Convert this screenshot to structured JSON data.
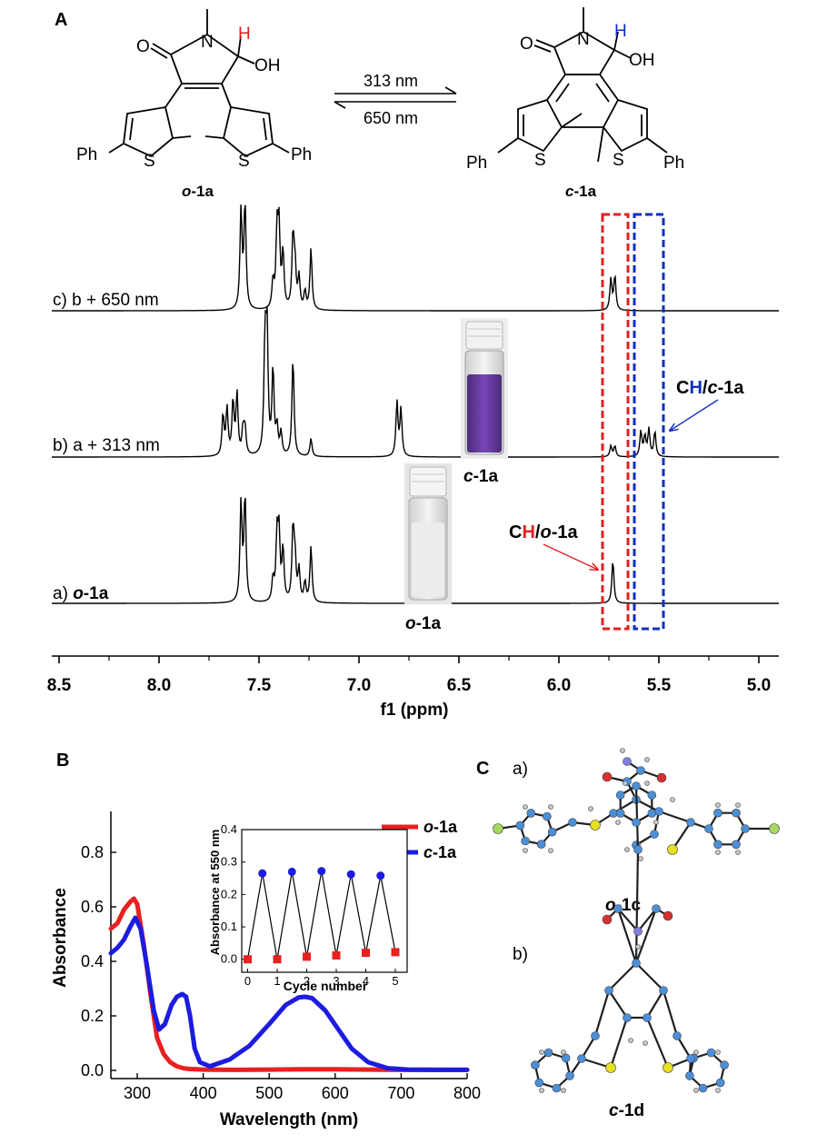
{
  "panels": {
    "a": "A",
    "b": "B",
    "c": "C"
  },
  "scheme": {
    "forward_wavelength": "313 nm",
    "reverse_wavelength": "650 nm",
    "left_label_prefix": "o",
    "left_label_suffix": "-1a",
    "right_label_prefix": "c",
    "right_label_suffix": "-1a",
    "atom_labels": {
      "o": "O",
      "n": "N",
      "h": "H",
      "oh": "OH",
      "s": "S",
      "ph": "Ph"
    },
    "colors": {
      "open_h": "#e02020",
      "closed_h": "#1030c0"
    }
  },
  "nmr": {
    "spectra": [
      {
        "id": "c",
        "prefix": "c)",
        "label": "b + 650 nm"
      },
      {
        "id": "b",
        "prefix": "b)",
        "label": "a + 313 nm"
      },
      {
        "id": "a",
        "prefix": "a)",
        "label_italic": "o",
        "label_rest": "-1a"
      }
    ],
    "axis": {
      "xlabel": "f1 (ppm)",
      "ticks": [
        "8.5",
        "8.0",
        "7.5",
        "7.0",
        "6.5",
        "6.0",
        "5.5",
        "5.0"
      ]
    },
    "annotations": {
      "closed": {
        "c": "C",
        "h": "H",
        "rest_italic": "c",
        "rest": "-1a"
      },
      "open": {
        "c": "C",
        "h": "H",
        "rest_italic": "o",
        "rest": "-1a"
      }
    },
    "vial_labels": {
      "purple_prefix": "c",
      "purple_suffix": "-1a",
      "clear_prefix": "o",
      "clear_suffix": "-1a"
    },
    "colors": {
      "red_box": "#e02020",
      "blue_box": "#1030c0"
    }
  },
  "chart_data": {
    "type": "line",
    "title": "",
    "xlabel": "Wavelength (nm)",
    "ylabel": "Absorbance",
    "xlim": [
      260,
      800
    ],
    "ylim": [
      -0.03,
      0.95
    ],
    "xticks": [
      "300",
      "400",
      "500",
      "600",
      "700",
      "800"
    ],
    "yticks": [
      "0.0",
      "0.2",
      "0.4",
      "0.6",
      "0.8"
    ],
    "series": [
      {
        "name_italic": "o",
        "name_rest": "-1a",
        "color": "#e82020",
        "x": [
          260,
          270,
          280,
          290,
          295,
          300,
          310,
          320,
          330,
          340,
          350,
          360,
          370,
          380,
          390,
          400,
          450,
          500,
          550,
          600,
          650,
          700,
          800
        ],
        "y": [
          0.52,
          0.54,
          0.59,
          0.62,
          0.63,
          0.61,
          0.46,
          0.28,
          0.12,
          0.06,
          0.03,
          0.015,
          0.008,
          0.005,
          0.004,
          0.003,
          0.002,
          0.003,
          0.004,
          0.004,
          0.003,
          0.002,
          0.002
        ]
      },
      {
        "name_italic": "c",
        "name_rest": "-1a",
        "color": "#1c1ce0",
        "x": [
          260,
          270,
          280,
          290,
          297,
          305,
          315,
          325,
          333,
          342,
          352,
          360,
          368,
          374,
          380,
          387,
          395,
          410,
          440,
          470,
          500,
          525,
          545,
          555,
          565,
          585,
          605,
          625,
          650,
          680,
          710,
          760,
          800
        ],
        "y": [
          0.43,
          0.45,
          0.48,
          0.53,
          0.56,
          0.52,
          0.38,
          0.22,
          0.15,
          0.17,
          0.24,
          0.27,
          0.28,
          0.27,
          0.2,
          0.08,
          0.03,
          0.015,
          0.04,
          0.09,
          0.17,
          0.24,
          0.268,
          0.27,
          0.265,
          0.22,
          0.15,
          0.08,
          0.03,
          0.008,
          0.003,
          0.002,
          0.002
        ]
      }
    ],
    "inset": {
      "type": "line",
      "xlabel": "Cycle number",
      "ylabel": "Absorbance at 550 nm",
      "xlim": [
        -0.2,
        5.4
      ],
      "ylim": [
        -0.04,
        0.4
      ],
      "xticks": [
        "0",
        "1",
        "2",
        "3",
        "4",
        "5"
      ],
      "yticks": [
        "0.0",
        "0.1",
        "0.2",
        "0.3",
        "0.4"
      ],
      "points": [
        {
          "x": 0,
          "y": 0.0,
          "state": "open"
        },
        {
          "x": 0.5,
          "y": 0.265,
          "state": "closed"
        },
        {
          "x": 1,
          "y": 0.0,
          "state": "open"
        },
        {
          "x": 1.5,
          "y": 0.27,
          "state": "closed"
        },
        {
          "x": 2,
          "y": 0.008,
          "state": "open"
        },
        {
          "x": 2.5,
          "y": 0.272,
          "state": "closed"
        },
        {
          "x": 3,
          "y": 0.012,
          "state": "open"
        },
        {
          "x": 3.5,
          "y": 0.262,
          "state": "closed"
        },
        {
          "x": 4,
          "y": 0.02,
          "state": "open"
        },
        {
          "x": 4.5,
          "y": 0.258,
          "state": "closed"
        },
        {
          "x": 5,
          "y": 0.022,
          "state": "open"
        }
      ],
      "colors": {
        "open": "#e82020",
        "closed": "#1c1ce0"
      }
    }
  },
  "crystal": {
    "a_prefix": "a)",
    "b_prefix": "b)",
    "a_label_italic": "o",
    "a_label_rest": "-1c",
    "b_label_italic": "c",
    "b_label_rest": "-1d"
  }
}
